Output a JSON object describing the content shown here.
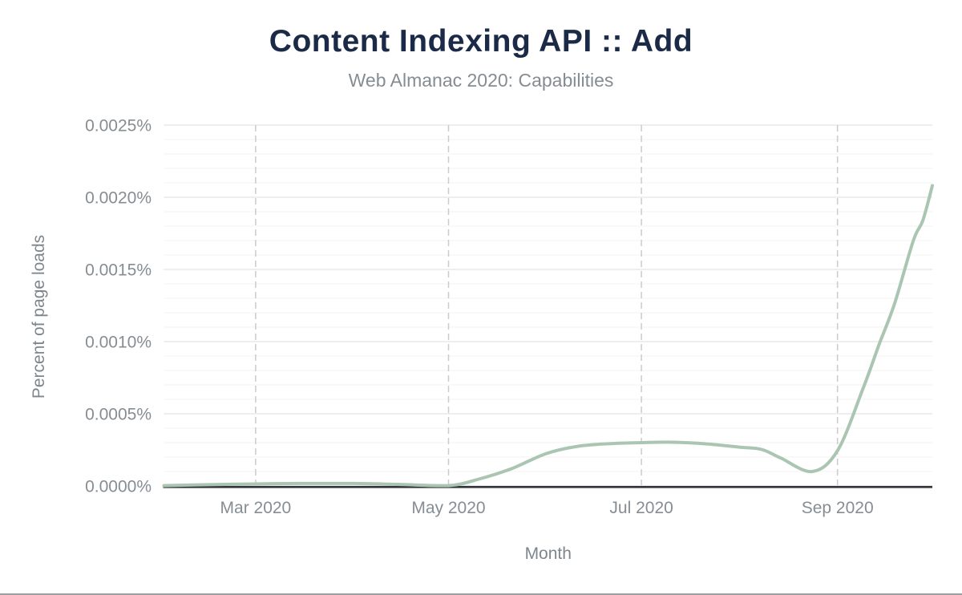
{
  "header": {
    "title": "Content Indexing API :: Add",
    "subtitle": "Web Almanac 2020: Capabilities"
  },
  "axes": {
    "x_title": "Month",
    "y_title": "Percent of page loads"
  },
  "colors": {
    "background": "#ffffff",
    "title": "#1b2a47",
    "subtitle": "#858c92",
    "tick_label": "#868d93",
    "axis_title": "#7e868d",
    "axis_line": "#33363b",
    "grid_major": "#e4e4e4",
    "grid_minor": "#f3f3f4",
    "grid_vertical_dashed": "#cbcbcb",
    "series_line": "#aac6b3",
    "figure_border": "#9c9fa2"
  },
  "chart_data": {
    "type": "line",
    "title": "Content Indexing API :: Add",
    "subtitle": "Web Almanac 2020: Capabilities",
    "xlabel": "Month",
    "ylabel": "Percent of page loads",
    "x_domain": [
      "2020-02-01",
      "2020-10-01"
    ],
    "ylim_pct": [
      0,
      0.0025
    ],
    "y_major_step_pct": 0.0005,
    "y_minor_step_pct": 0.0001,
    "y_tick_labels": [
      "0.0000%",
      "0.0005%",
      "0.0010%",
      "0.0015%",
      "0.0020%",
      "0.0025%"
    ],
    "x_ticks": [
      {
        "date": "2020-03-01",
        "label": "Mar 2020"
      },
      {
        "date": "2020-05-01",
        "label": "May 2020"
      },
      {
        "date": "2020-07-01",
        "label": "Jul 2020"
      },
      {
        "date": "2020-09-01",
        "label": "Sep 2020"
      }
    ],
    "grid": {
      "horizontal": "solid",
      "vertical": "dashed"
    },
    "legend": "none",
    "series": [
      {
        "name": "Percent of page loads",
        "color": "#aac6b3",
        "points": [
          {
            "date": "2020-02-01",
            "pct": 2e-06
          },
          {
            "date": "2020-02-15",
            "pct": 9e-06
          },
          {
            "date": "2020-03-01",
            "pct": 1.4e-05
          },
          {
            "date": "2020-03-15",
            "pct": 1.7e-05
          },
          {
            "date": "2020-04-01",
            "pct": 1.7e-05
          },
          {
            "date": "2020-04-15",
            "pct": 1.1e-05
          },
          {
            "date": "2020-05-01",
            "pct": 2e-06
          },
          {
            "date": "2020-05-11",
            "pct": 5e-05
          },
          {
            "date": "2020-05-21",
            "pct": 0.00012
          },
          {
            "date": "2020-06-01",
            "pct": 0.000225
          },
          {
            "date": "2020-06-11",
            "pct": 0.000275
          },
          {
            "date": "2020-06-21",
            "pct": 0.000293
          },
          {
            "date": "2020-07-01",
            "pct": 0.0003
          },
          {
            "date": "2020-07-11",
            "pct": 0.000303
          },
          {
            "date": "2020-07-21",
            "pct": 0.000292
          },
          {
            "date": "2020-08-01",
            "pct": 0.000269
          },
          {
            "date": "2020-08-08",
            "pct": 0.000253
          },
          {
            "date": "2020-08-14",
            "pct": 0.000194
          },
          {
            "date": "2020-08-24",
            "pct": 0.0001
          },
          {
            "date": "2020-09-01",
            "pct": 0.000244
          },
          {
            "date": "2020-09-09",
            "pct": 0.00067
          },
          {
            "date": "2020-09-14",
            "pct": 0.00097
          },
          {
            "date": "2020-09-19",
            "pct": 0.00126
          },
          {
            "date": "2020-09-25",
            "pct": 0.0017
          },
          {
            "date": "2020-09-28",
            "pct": 0.00184
          },
          {
            "date": "2020-10-01",
            "pct": 0.00208
          }
        ]
      }
    ]
  }
}
